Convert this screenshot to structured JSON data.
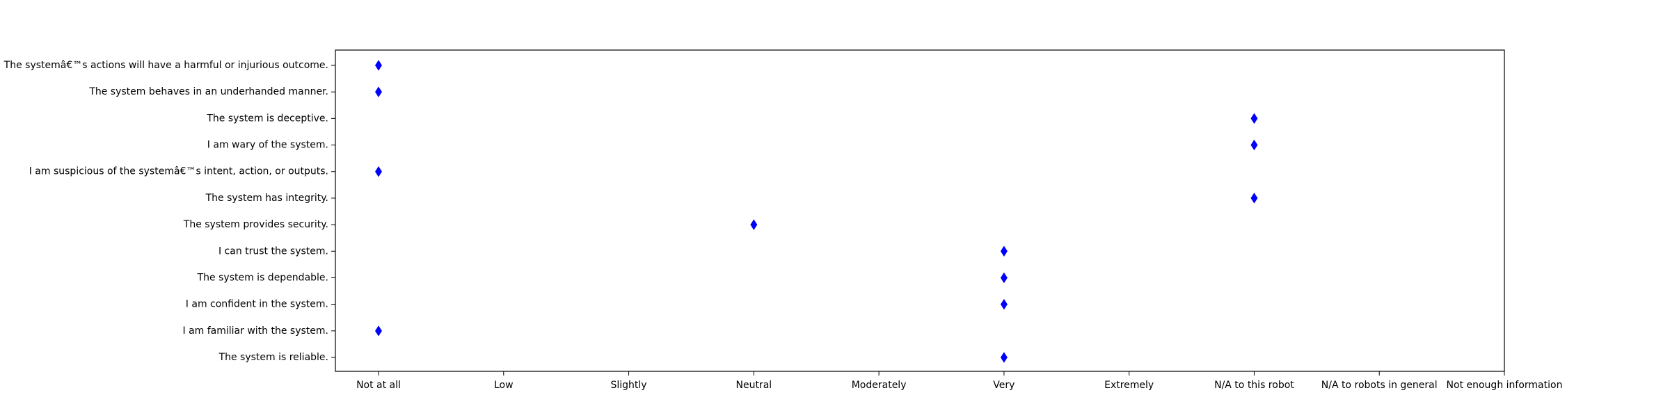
{
  "chart_data": {
    "type": "scatter",
    "x_categories": [
      "Not at all",
      "Low",
      "Slightly",
      "Neutral",
      "Moderately",
      "Very",
      "Extremely",
      "N/A to this robot",
      "N/A to robots in general",
      "Not enough information"
    ],
    "y_categories": [
      "The systemâ€™s actions will have a harmful or injurious outcome.",
      "The system behaves in an underhanded manner.",
      "The system is deceptive.",
      "I am wary of the system.",
      "I am suspicious of the systemâ€™s intent, action, or outputs.",
      "The system has integrity.",
      "The system provides security.",
      "I can trust the system.",
      "The system is dependable.",
      "I am confident in the system.",
      "I am familiar with the system.",
      "The system is reliable."
    ],
    "points": [
      {
        "y": "The systemâ€™s actions will have a harmful or injurious outcome.",
        "x": "Not at all"
      },
      {
        "y": "The system behaves in an underhanded manner.",
        "x": "Not at all"
      },
      {
        "y": "The system is deceptive.",
        "x": "N/A to this robot"
      },
      {
        "y": "I am wary of the system.",
        "x": "N/A to this robot"
      },
      {
        "y": "I am suspicious of the systemâ€™s intent, action, or outputs.",
        "x": "Not at all"
      },
      {
        "y": "The system has integrity.",
        "x": "N/A to this robot"
      },
      {
        "y": "The system provides security.",
        "x": "Neutral"
      },
      {
        "y": "I can trust the system.",
        "x": "Very"
      },
      {
        "y": "The system is dependable.",
        "x": "Very"
      },
      {
        "y": "I am confident in the system.",
        "x": "Very"
      },
      {
        "y": "I am familiar with the system.",
        "x": "Not at all"
      },
      {
        "y": "The system is reliable.",
        "x": "Very"
      }
    ],
    "marker": "diamond",
    "marker_color": "#0000ff",
    "grid": false,
    "legend": "none",
    "title": "",
    "xlabel": "",
    "ylabel": ""
  }
}
